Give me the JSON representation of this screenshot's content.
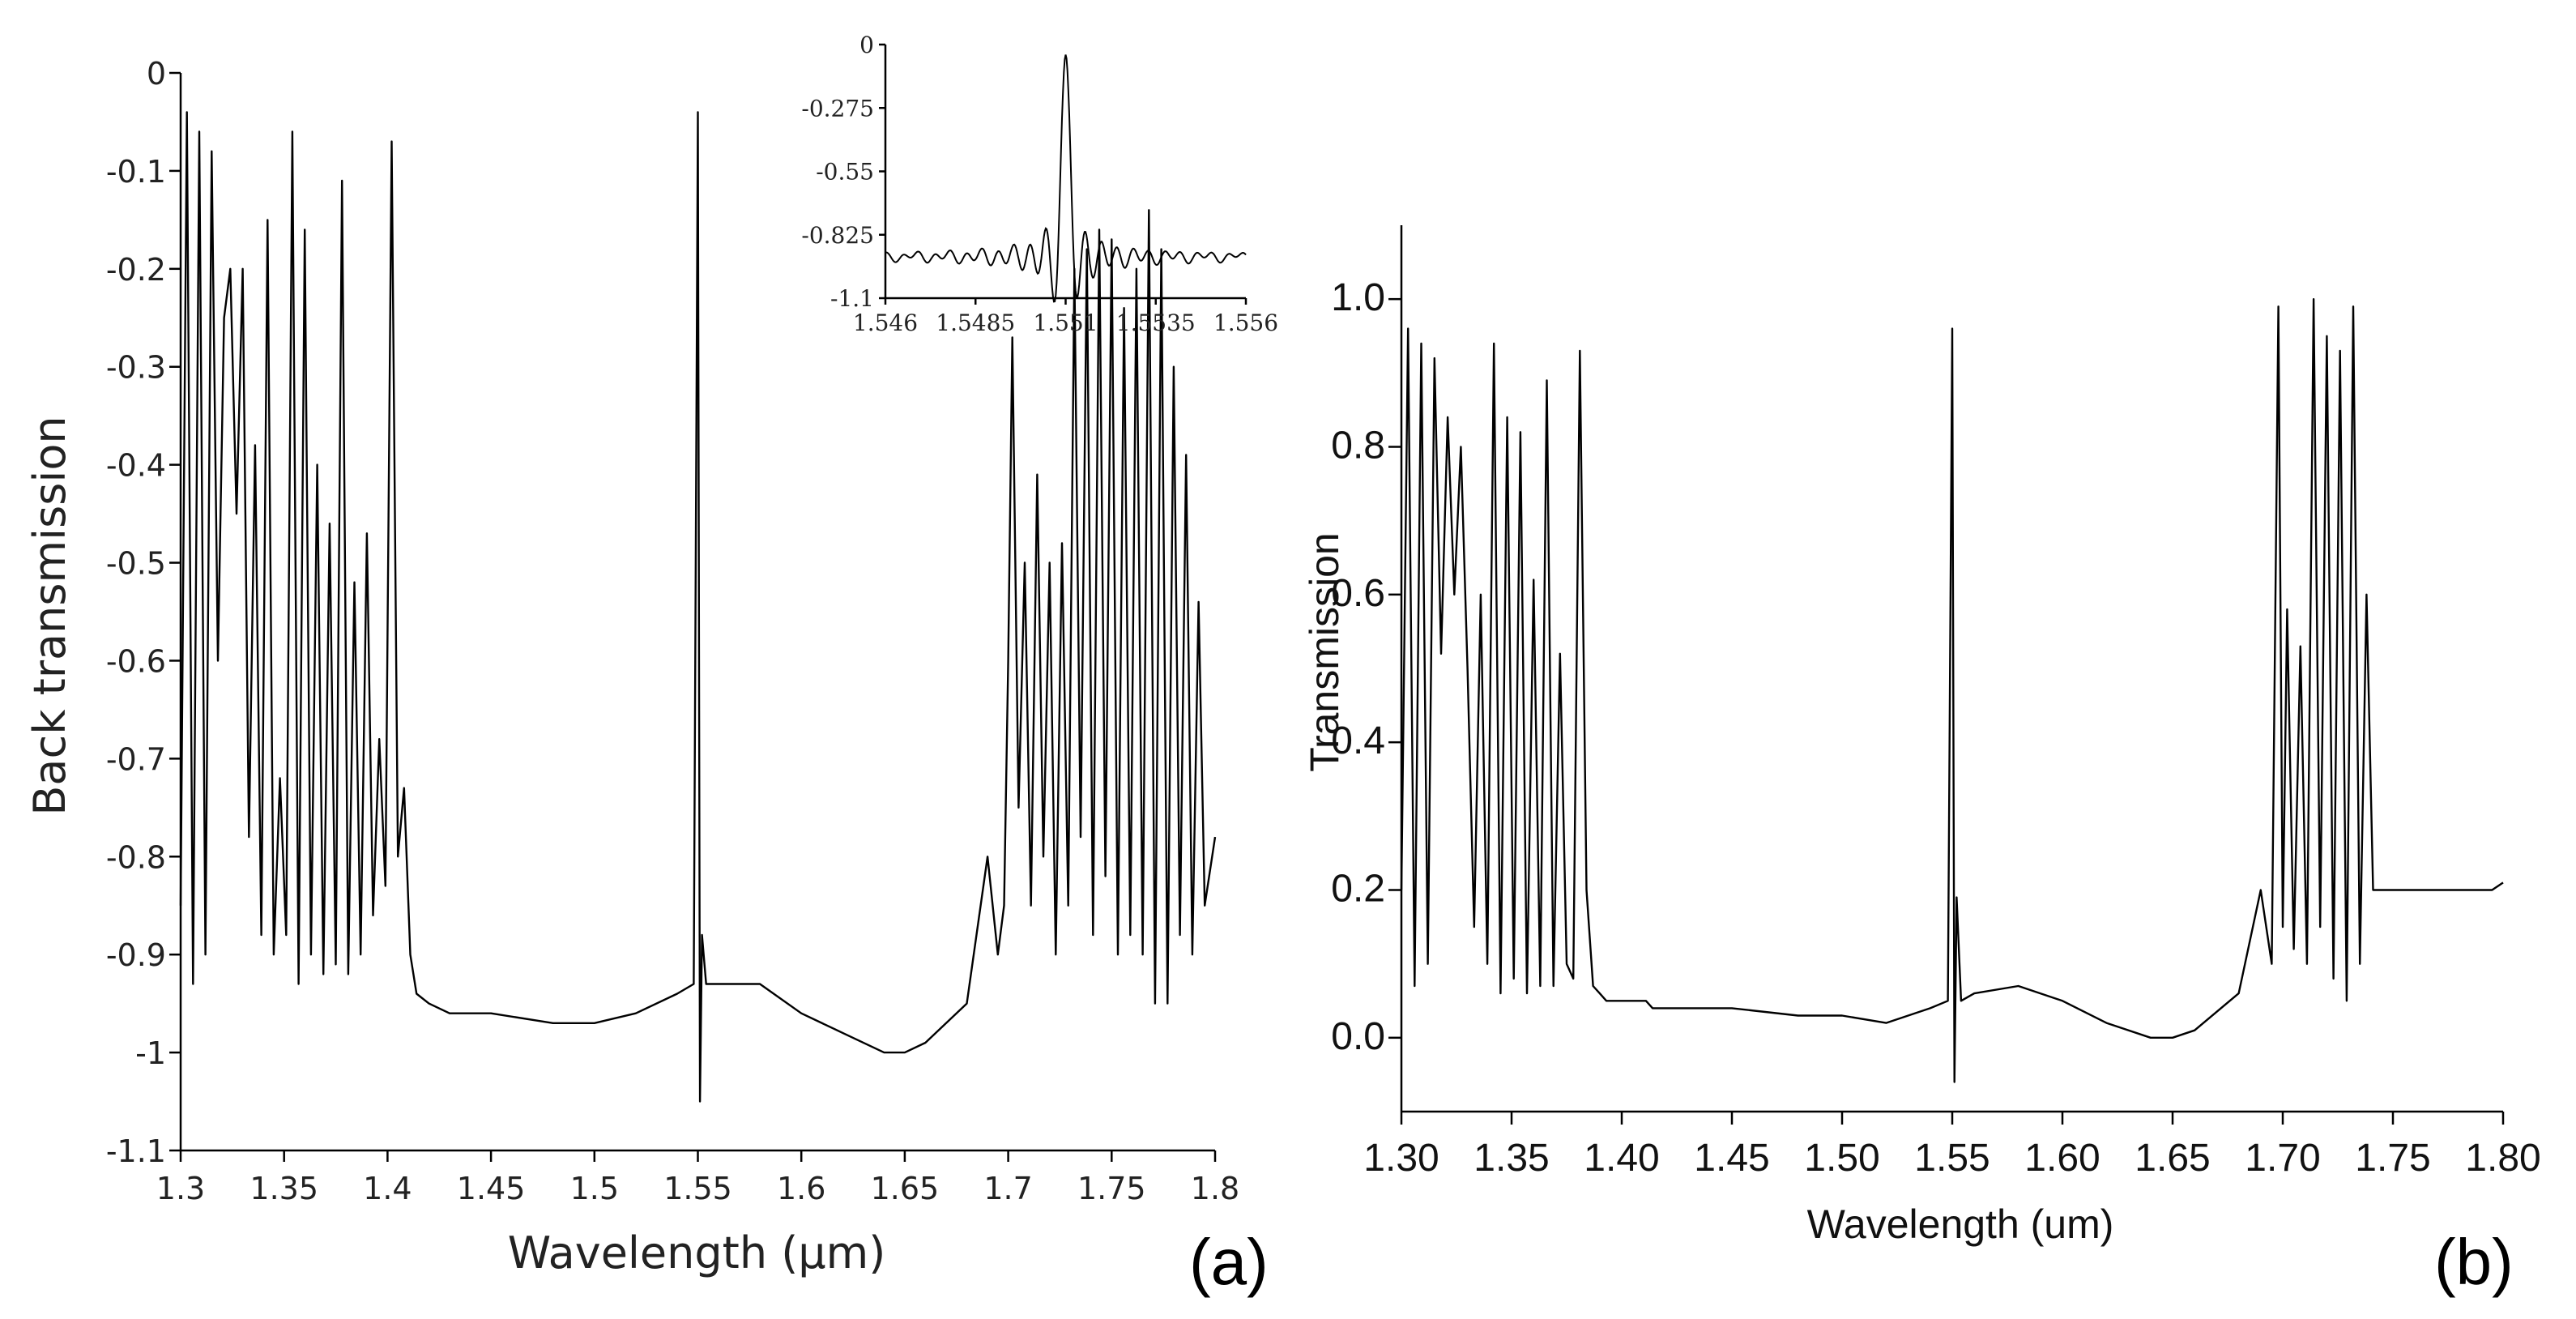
{
  "chart_data": [
    {
      "id": "a",
      "type": "line",
      "panel_label": "(a)",
      "xlabel": "Wavelength (µm)",
      "ylabel": "Back transmission",
      "xlim": [
        1.3,
        1.8
      ],
      "ylim": [
        -1.1,
        0
      ],
      "x_ticks": [
        1.3,
        1.35,
        1.4,
        1.45,
        1.5,
        1.55,
        1.6,
        1.65,
        1.7,
        1.75,
        1.8
      ],
      "x_tick_labels": [
        "1.3",
        "1.35",
        "1.4",
        "1.45",
        "1.5",
        "1.55",
        "1.6",
        "1.65",
        "1.7",
        "1.75",
        "1.8"
      ],
      "y_ticks": [
        0,
        -0.1,
        -0.2,
        -0.3,
        -0.4,
        -0.5,
        -0.6,
        -0.7,
        -0.8,
        -0.9,
        -1,
        -1.1
      ],
      "y_tick_labels": [
        "0",
        "-0.1",
        "-0.2",
        "-0.3",
        "-0.4",
        "-0.5",
        "-0.6",
        "-0.7",
        "-0.8",
        "-0.9",
        "-1",
        "-1.1"
      ],
      "series": [
        {
          "name": "back transmission",
          "x": [
            1.3,
            1.303,
            1.306,
            1.309,
            1.312,
            1.315,
            1.318,
            1.321,
            1.324,
            1.327,
            1.33,
            1.333,
            1.336,
            1.339,
            1.342,
            1.345,
            1.348,
            1.351,
            1.354,
            1.357,
            1.36,
            1.363,
            1.366,
            1.369,
            1.372,
            1.375,
            1.378,
            1.381,
            1.384,
            1.387,
            1.39,
            1.393,
            1.396,
            1.399,
            1.402,
            1.405,
            1.408,
            1.411,
            1.414,
            1.42,
            1.43,
            1.45,
            1.48,
            1.5,
            1.52,
            1.54,
            1.548,
            1.55,
            1.551,
            1.552,
            1.554,
            1.56,
            1.58,
            1.6,
            1.62,
            1.64,
            1.65,
            1.66,
            1.68,
            1.69,
            1.695,
            1.698,
            1.7,
            1.702,
            1.705,
            1.708,
            1.711,
            1.714,
            1.717,
            1.72,
            1.723,
            1.726,
            1.729,
            1.732,
            1.735,
            1.738,
            1.741,
            1.744,
            1.747,
            1.75,
            1.753,
            1.756,
            1.759,
            1.762,
            1.765,
            1.768,
            1.771,
            1.774,
            1.777,
            1.78,
            1.783,
            1.786,
            1.789,
            1.792,
            1.795,
            1.8
          ],
          "y": [
            -0.85,
            -0.04,
            -0.93,
            -0.06,
            -0.9,
            -0.08,
            -0.6,
            -0.25,
            -0.2,
            -0.45,
            -0.2,
            -0.78,
            -0.38,
            -0.88,
            -0.15,
            -0.9,
            -0.72,
            -0.88,
            -0.06,
            -0.93,
            -0.16,
            -0.9,
            -0.4,
            -0.92,
            -0.46,
            -0.91,
            -0.11,
            -0.92,
            -0.52,
            -0.9,
            -0.47,
            -0.86,
            -0.68,
            -0.83,
            -0.07,
            -0.8,
            -0.73,
            -0.9,
            -0.94,
            -0.95,
            -0.96,
            -0.96,
            -0.97,
            -0.97,
            -0.96,
            -0.94,
            -0.93,
            -0.04,
            -1.05,
            -0.88,
            -0.93,
            -0.93,
            -0.93,
            -0.96,
            -0.98,
            -1.0,
            -1.0,
            -0.99,
            -0.95,
            -0.8,
            -0.9,
            -0.85,
            -0.6,
            -0.27,
            -0.75,
            -0.5,
            -0.85,
            -0.41,
            -0.8,
            -0.5,
            -0.9,
            -0.48,
            -0.85,
            -0.2,
            -0.78,
            -0.18,
            -0.88,
            -0.16,
            -0.82,
            -0.17,
            -0.9,
            -0.24,
            -0.88,
            -0.2,
            -0.9,
            -0.14,
            -0.95,
            -0.18,
            -0.95,
            -0.3,
            -0.88,
            -0.39,
            -0.9,
            -0.54,
            -0.85,
            -0.78
          ]
        }
      ],
      "inset": {
        "type": "line",
        "xlim": [
          1.546,
          1.556
        ],
        "ylim": [
          -1.1,
          0
        ],
        "x_tick_labels": [
          "1.546",
          "1.5485",
          "1.551",
          "1.5535",
          "1.556"
        ],
        "x_ticks": [
          1.546,
          1.5485,
          1.551,
          1.5535,
          1.556
        ],
        "y_tick_labels": [
          "0",
          "-0.275",
          "-0.55",
          "-0.825",
          "-1.1"
        ],
        "y_ticks": [
          0,
          -0.275,
          -0.55,
          -0.825,
          -1.1
        ],
        "peak": {
          "x": 1.551,
          "y": -0.04
        },
        "baseline": -0.92
      }
    },
    {
      "id": "b",
      "type": "line",
      "panel_label": "(b)",
      "xlabel": "Wavelength (um)",
      "ylabel": "Transmission",
      "xlim": [
        1.3,
        1.8
      ],
      "ylim": [
        -0.1,
        1.1
      ],
      "x_ticks": [
        1.3,
        1.35,
        1.4,
        1.45,
        1.5,
        1.55,
        1.6,
        1.65,
        1.7,
        1.75,
        1.8
      ],
      "x_tick_labels": [
        "1.30",
        "1.35",
        "1.40",
        "1.45",
        "1.50",
        "1.55",
        "1.60",
        "1.65",
        "1.70",
        "1.75",
        "1.80"
      ],
      "y_ticks": [
        0,
        0.2,
        0.4,
        0.6,
        0.8,
        1.0
      ],
      "y_tick_labels": [
        "0.0",
        "0.2",
        "0.4",
        "0.6",
        "0.8",
        "1.0"
      ],
      "series": [
        {
          "name": "transmission",
          "x": [
            1.3,
            1.303,
            1.306,
            1.309,
            1.312,
            1.315,
            1.318,
            1.321,
            1.324,
            1.327,
            1.33,
            1.333,
            1.336,
            1.339,
            1.342,
            1.345,
            1.348,
            1.351,
            1.354,
            1.357,
            1.36,
            1.363,
            1.366,
            1.369,
            1.372,
            1.375,
            1.378,
            1.381,
            1.384,
            1.387,
            1.39,
            1.393,
            1.396,
            1.399,
            1.402,
            1.405,
            1.408,
            1.411,
            1.414,
            1.42,
            1.43,
            1.45,
            1.48,
            1.5,
            1.52,
            1.54,
            1.548,
            1.55,
            1.551,
            1.552,
            1.554,
            1.56,
            1.58,
            1.6,
            1.62,
            1.64,
            1.65,
            1.66,
            1.68,
            1.69,
            1.695,
            1.698,
            1.7,
            1.702,
            1.705,
            1.708,
            1.711,
            1.714,
            1.717,
            1.72,
            1.723,
            1.726,
            1.729,
            1.732,
            1.735,
            1.738,
            1.741,
            1.744,
            1.747,
            1.75,
            1.753,
            1.756,
            1.759,
            1.762,
            1.765,
            1.768,
            1.771,
            1.774,
            1.777,
            1.78,
            1.783,
            1.786,
            1.789,
            1.792,
            1.795,
            1.8
          ],
          "y": [
            0.2,
            0.96,
            0.07,
            0.94,
            0.1,
            0.92,
            0.52,
            0.84,
            0.6,
            0.8,
            0.5,
            0.15,
            0.6,
            0.1,
            0.94,
            0.06,
            0.84,
            0.08,
            0.82,
            0.06,
            0.62,
            0.07,
            0.89,
            0.07,
            0.52,
            0.1,
            0.08,
            0.93,
            0.2,
            0.07,
            0.06,
            0.05,
            0.05,
            0.05,
            0.05,
            0.05,
            0.05,
            0.05,
            0.04,
            0.04,
            0.04,
            0.04,
            0.03,
            0.03,
            0.02,
            0.04,
            0.05,
            0.96,
            -0.06,
            0.19,
            0.05,
            0.06,
            0.07,
            0.05,
            0.02,
            0.0,
            0.0,
            0.01,
            0.06,
            0.2,
            0.1,
            0.99,
            0.15,
            0.58,
            0.12,
            0.53,
            0.1,
            1.0,
            0.15,
            0.95,
            0.08,
            0.93,
            0.05,
            0.99,
            0.1,
            0.6,
            0.2,
            0.2,
            0.2,
            0.2,
            0.2,
            0.2,
            0.2,
            0.2,
            0.2,
            0.2,
            0.2,
            0.2,
            0.2,
            0.2,
            0.2,
            0.2,
            0.2,
            0.2,
            0.2,
            0.21
          ]
        }
      ]
    }
  ]
}
